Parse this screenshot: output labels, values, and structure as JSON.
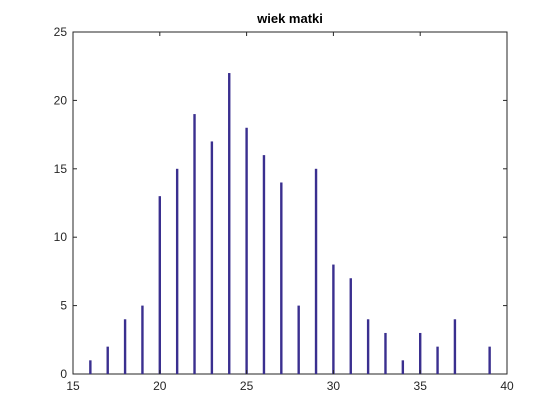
{
  "chart_data": {
    "type": "bar",
    "title": "wiek matki",
    "xlabel": "",
    "ylabel": "",
    "xlim": [
      15,
      40
    ],
    "ylim": [
      0,
      25
    ],
    "x_ticks": [
      15,
      20,
      25,
      30,
      35,
      40
    ],
    "y_ticks": [
      0,
      5,
      10,
      15,
      20,
      25
    ],
    "grid": false,
    "bar_color": "#3a2f8f",
    "x": [
      16,
      17,
      18,
      19,
      20,
      21,
      22,
      23,
      24,
      25,
      26,
      27,
      28,
      29,
      30,
      31,
      32,
      33,
      34,
      35,
      36,
      37,
      39
    ],
    "values": [
      1,
      2,
      4,
      5,
      13,
      15,
      19,
      17,
      22,
      18,
      16,
      14,
      5,
      15,
      8,
      7,
      4,
      3,
      1,
      3,
      2,
      4,
      2
    ]
  }
}
